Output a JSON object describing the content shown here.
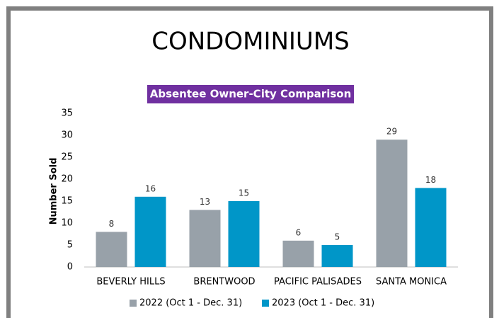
{
  "chart_data": {
    "type": "bar",
    "title": "CONDOMINIUMS",
    "subtitle": "Absentee Owner-City Comparison",
    "y_label": "Number Sold",
    "categories": [
      "BEVERLY HILLS",
      "BRENTWOOD",
      "PACIFIC PALISADES",
      "SANTA MONICA"
    ],
    "series": [
      {
        "name": "2022 (Oct 1 - Dec. 31)",
        "color": "#98a1a9",
        "values": [
          8,
          13,
          6,
          29
        ]
      },
      {
        "name": "2023 (Oct 1 - Dec. 31)",
        "color": "#0096c8",
        "values": [
          16,
          15,
          5,
          18
        ]
      }
    ],
    "ylim": [
      0,
      35
    ],
    "yticks": [
      0,
      5,
      10,
      15,
      20,
      25,
      30,
      35
    ],
    "grid": false,
    "legend": "bottom"
  }
}
